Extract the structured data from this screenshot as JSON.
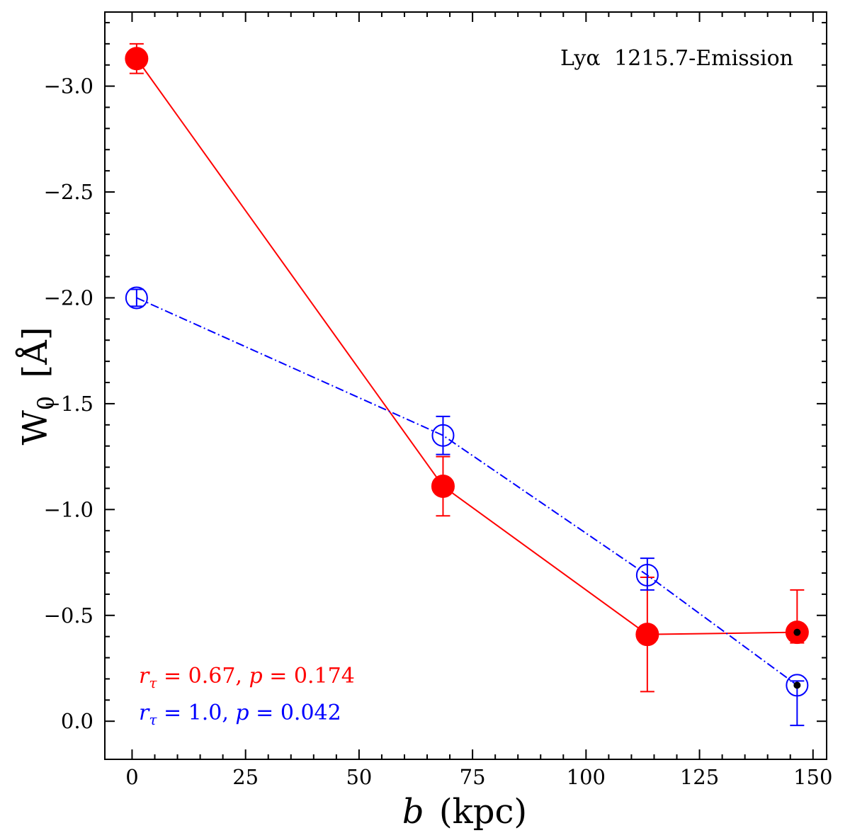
{
  "chart_data": {
    "type": "scatter",
    "title": "",
    "annotation": {
      "species": "Lyα",
      "wavelength": "1215.7",
      "kind": "-Emission",
      "full": "Lyα 1215.7-Emission"
    },
    "xlabel": {
      "symbol": "b",
      "unit": "(kpc)"
    },
    "ylabel": {
      "symbol": "W",
      "subscript": "0",
      "unit": "[Å]"
    },
    "xlim": [
      -6,
      153
    ],
    "ylim": [
      0.18,
      -3.35
    ],
    "y_inverted": true,
    "xticks": [
      0,
      25,
      50,
      75,
      100,
      125,
      150
    ],
    "xtick_labels": [
      "0",
      "25",
      "50",
      "75",
      "100",
      "125",
      "150"
    ],
    "yticks": [
      0.0,
      -0.5,
      -1.0,
      -1.5,
      -2.0,
      -2.5,
      -3.0
    ],
    "ytick_labels": [
      "0.0",
      "−0.5",
      "−1.0",
      "−1.5",
      "−2.0",
      "−2.5",
      "−3.0"
    ],
    "series": [
      {
        "name": "red",
        "color": "#ff0000",
        "marker": "filled-circle",
        "linestyle": "solid",
        "x": [
          1,
          68.5,
          113.5,
          146.5
        ],
        "y": [
          -3.13,
          -1.11,
          -0.41,
          -0.42
        ],
        "yerr_low": [
          -3.06,
          -0.97,
          -0.14,
          -0.37
        ],
        "yerr_high": [
          -3.2,
          -1.25,
          -0.68,
          -0.62
        ],
        "inner_dot": [
          false,
          false,
          false,
          true
        ]
      },
      {
        "name": "blue",
        "color": "#0000ff",
        "marker": "open-circle",
        "linestyle": "dashdot",
        "x": [
          1,
          68.5,
          113.5,
          146.5
        ],
        "y": [
          -2.0,
          -1.35,
          -0.69,
          -0.17
        ],
        "yerr_low": [
          -1.96,
          -1.26,
          -0.62,
          0.02
        ],
        "yerr_high": [
          -2.04,
          -1.44,
          -0.77,
          -0.19
        ],
        "inner_dot": [
          false,
          false,
          false,
          true
        ]
      }
    ],
    "stats": [
      {
        "color": "#ff0000",
        "r_label": "r",
        "r_sub": "τ",
        "r_value": " = 0.67, ",
        "p_label": "p",
        "p_value": " =  0.174"
      },
      {
        "color": "#0000ff",
        "r_label": "r",
        "r_sub": "τ",
        "r_value": " = 1.0, ",
        "p_label": "p",
        "p_value": " =  0.042"
      }
    ]
  }
}
